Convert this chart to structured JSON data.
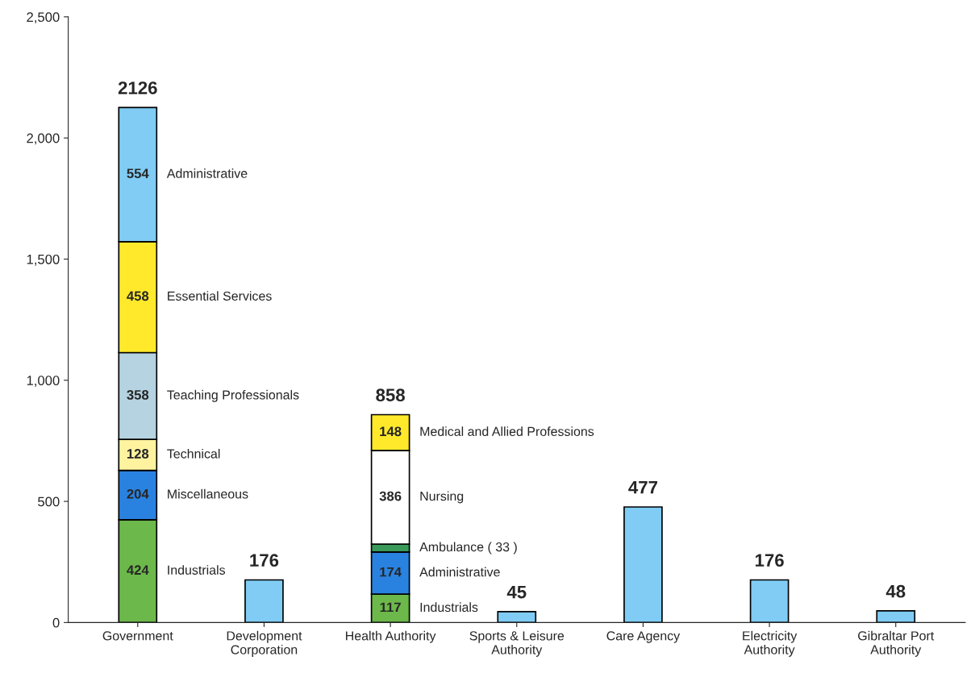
{
  "chart_data": {
    "type": "bar",
    "stacked": true,
    "categories": [
      "Government",
      "Development\nCorporation",
      "Health Authority",
      "Sports & Leisure\nAuthority",
      "Care Agency",
      "Electricity\nAuthority",
      "Gibraltar Port\nAuthority"
    ],
    "series": [
      {
        "name": "Industrials",
        "color": "#6cb84a",
        "values": [
          424,
          null,
          117,
          null,
          null,
          null,
          null
        ],
        "value_labels": [
          "424",
          null,
          "117",
          null,
          null,
          null,
          null
        ]
      },
      {
        "name": "Miscellaneous",
        "color": "#2a82e0",
        "values": [
          204,
          null,
          null,
          null,
          null,
          null,
          null
        ],
        "value_labels": [
          "204",
          null,
          null,
          null,
          null,
          null,
          null
        ]
      },
      {
        "name": "Administrative",
        "color": "#2a82e0",
        "values": [
          null,
          null,
          174,
          null,
          null,
          null,
          null
        ],
        "value_labels": [
          null,
          null,
          "174",
          null,
          null,
          null,
          null
        ]
      },
      {
        "name": "Ambulance ( 33 )",
        "color": "#3a9a5a",
        "values": [
          null,
          null,
          33,
          null,
          null,
          null,
          null
        ]
      },
      {
        "name": "Technical",
        "color": "#fff3a0",
        "values": [
          128,
          null,
          null,
          null,
          null,
          null,
          null
        ],
        "value_labels": [
          "128",
          null,
          null,
          null,
          null,
          null,
          null
        ]
      },
      {
        "name": "Nursing",
        "color": "#ffffff",
        "values": [
          null,
          null,
          386,
          null,
          null,
          null,
          null
        ],
        "value_labels": [
          null,
          null,
          "386",
          null,
          null,
          null,
          null
        ]
      },
      {
        "name": "Teaching Professionals",
        "color": "#b5d3e0",
        "values": [
          358,
          null,
          null,
          null,
          null,
          null,
          null
        ],
        "value_labels": [
          "358",
          null,
          null,
          null,
          null,
          null,
          null
        ]
      },
      {
        "name": "Medical and Allied Professions",
        "color": "#ffe92a",
        "values": [
          null,
          null,
          148,
          null,
          null,
          null,
          null
        ],
        "value_labels": [
          null,
          null,
          "148",
          null,
          null,
          null,
          null
        ]
      },
      {
        "name": "Essential Services",
        "color": "#ffe92a",
        "values": [
          458,
          null,
          null,
          null,
          null,
          null,
          null
        ],
        "value_labels": [
          "458",
          null,
          null,
          null,
          null,
          null,
          null
        ]
      },
      {
        "name": "Administrative",
        "color": "#80ccf4",
        "values": [
          554,
          null,
          null,
          null,
          null,
          null,
          null
        ],
        "value_labels": [
          "554",
          null,
          null,
          null,
          null,
          null,
          null
        ]
      },
      {
        "color": "#80ccf4",
        "values": [
          null,
          176,
          null,
          45,
          477,
          176,
          48
        ]
      }
    ],
    "totals": [
      "2126",
      "176",
      "858",
      "45",
      "477",
      "176",
      "48"
    ],
    "ylim": [
      0,
      2500
    ],
    "yticks": [
      0,
      {
        "value": 500,
        "label": "500"
      },
      {
        "value": 1000,
        "label": "1,000"
      },
      {
        "value": 1500,
        "label": "1,500"
      },
      {
        "value": 2000,
        "label": "2,000"
      },
      {
        "value": 2500,
        "label": "2,500"
      }
    ],
    "grid": false
  }
}
